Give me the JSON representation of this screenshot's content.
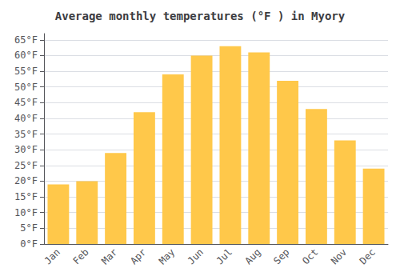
{
  "chart_data": {
    "type": "bar",
    "title": "Average monthly temperatures (°F ) in Myory",
    "categories": [
      "Jan",
      "Feb",
      "Mar",
      "Apr",
      "May",
      "Jun",
      "Jul",
      "Aug",
      "Sep",
      "Oct",
      "Nov",
      "Dec"
    ],
    "values": [
      19,
      20,
      29,
      42,
      54,
      60,
      63,
      61,
      52,
      43,
      33,
      24
    ],
    "color": "#FFC84A",
    "ylim": [
      0,
      67
    ],
    "yticks": [
      {
        "value": 0,
        "label": "0°F"
      },
      {
        "value": 5,
        "label": "5°F"
      },
      {
        "value": 10,
        "label": "10°F"
      },
      {
        "value": 15,
        "label": "15°F"
      },
      {
        "value": 20,
        "label": "20°F"
      },
      {
        "value": 25,
        "label": "25°F"
      },
      {
        "value": 30,
        "label": "30°F"
      },
      {
        "value": 35,
        "label": "35°F"
      },
      {
        "value": 40,
        "label": "40°F"
      },
      {
        "value": 45,
        "label": "45°F"
      },
      {
        "value": 50,
        "label": "50°F"
      },
      {
        "value": 55,
        "label": "55°F"
      },
      {
        "value": 60,
        "label": "60°F"
      },
      {
        "value": 65,
        "label": "65°F"
      }
    ],
    "grid": true
  }
}
